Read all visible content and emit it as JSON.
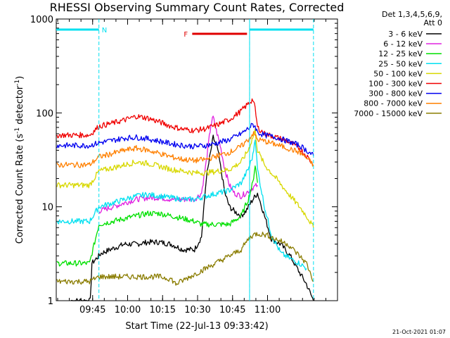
{
  "chart_data": {
    "type": "line",
    "title": "RHESSI Observing Summary Count Rates, Corrected",
    "xlabel": "Start Time (22-Jul-13 09:33:42)",
    "ylabel_main": "Corrected Count Rate (s",
    "ylabel_sup1": "-1",
    "ylabel_mid": " detector",
    "ylabel_sup2": "-1",
    "ylabel_end": ")",
    "y_scale": "log",
    "ylim": [
      1,
      1000
    ],
    "xlim_minutes": [
      -4.3,
      116.3
    ],
    "x_ticks": [
      "09:45",
      "10:00",
      "10:15",
      "10:30",
      "10:45",
      "11:00"
    ],
    "x_tick_minutes": [
      11.3,
      26.3,
      41.3,
      56.3,
      71.3,
      86.3
    ],
    "y_ticks": [
      "1",
      "10",
      "100",
      "1000"
    ],
    "y_tick_values": [
      1,
      10,
      100,
      1000
    ],
    "legend_header": [
      "Det 1,3,4,5,6,9,",
      "Att 0"
    ],
    "legend_placement": "right-outside",
    "series": [
      {
        "name": "3 - 6 keV",
        "color": "#000000",
        "points": [
          [
            2,
            1
          ],
          [
            10.3,
            1
          ],
          [
            11,
            2.5
          ],
          [
            15,
            3.2
          ],
          [
            20,
            3.6
          ],
          [
            25,
            4.0
          ],
          [
            30,
            4.0
          ],
          [
            35,
            4.2
          ],
          [
            40,
            4.2
          ],
          [
            45,
            4.0
          ],
          [
            50,
            3.5
          ],
          [
            55,
            3.5
          ],
          [
            58,
            4.8
          ],
          [
            60,
            20
          ],
          [
            63,
            55
          ],
          [
            65,
            40
          ],
          [
            68,
            14
          ],
          [
            70,
            10
          ],
          [
            72,
            9
          ],
          [
            75,
            8
          ],
          [
            77,
            9
          ],
          [
            80,
            12
          ],
          [
            82,
            14
          ],
          [
            85,
            8
          ],
          [
            88,
            4.5
          ],
          [
            92,
            4
          ],
          [
            96,
            3
          ],
          [
            100,
            2
          ],
          [
            103,
            1.5
          ],
          [
            106,
            1
          ]
        ]
      },
      {
        "name": "6 - 12 keV",
        "color": "#e020e0",
        "points": [
          [
            14,
            9
          ],
          [
            20,
            10
          ],
          [
            25,
            11
          ],
          [
            30,
            12
          ],
          [
            35,
            12.5
          ],
          [
            40,
            12.5
          ],
          [
            45,
            12
          ],
          [
            50,
            12
          ],
          [
            55,
            12
          ],
          [
            58,
            14
          ],
          [
            60,
            30
          ],
          [
            62,
            75
          ],
          [
            63,
            90
          ],
          [
            64,
            70
          ],
          [
            66,
            45
          ],
          [
            68,
            25
          ],
          [
            70,
            17
          ],
          [
            72,
            14
          ],
          [
            75,
            13
          ],
          [
            77,
            14
          ],
          [
            80,
            16
          ],
          [
            82,
            17
          ]
        ]
      },
      {
        "name": "12 - 25 keV",
        "color": "#00e000",
        "points": [
          [
            -4,
            2.5
          ],
          [
            10,
            2.5
          ],
          [
            14,
            6.5
          ],
          [
            20,
            7
          ],
          [
            25,
            7.5
          ],
          [
            30,
            8
          ],
          [
            35,
            8.5
          ],
          [
            40,
            8.5
          ],
          [
            45,
            8
          ],
          [
            50,
            7.5
          ],
          [
            55,
            7
          ],
          [
            58,
            6.5
          ],
          [
            60,
            6.5
          ],
          [
            65,
            6.5
          ],
          [
            70,
            6.5
          ],
          [
            75,
            8
          ],
          [
            78,
            12
          ],
          [
            80,
            18
          ],
          [
            81,
            28
          ],
          [
            82,
            18
          ]
        ]
      },
      {
        "name": "25 - 50 keV",
        "color": "#00e0f0",
        "points": [
          [
            -4,
            7
          ],
          [
            10,
            7
          ],
          [
            14,
            10
          ],
          [
            20,
            11
          ],
          [
            25,
            12
          ],
          [
            30,
            13
          ],
          [
            35,
            13.5
          ],
          [
            40,
            13
          ],
          [
            45,
            12.5
          ],
          [
            50,
            12
          ],
          [
            55,
            12
          ],
          [
            60,
            13
          ],
          [
            65,
            14
          ],
          [
            70,
            15
          ],
          [
            75,
            18
          ],
          [
            78,
            25
          ],
          [
            80,
            35
          ],
          [
            81,
            55
          ],
          [
            82,
            25
          ],
          [
            85,
            10
          ],
          [
            88,
            5
          ],
          [
            92,
            3.2
          ],
          [
            96,
            2.8
          ],
          [
            100,
            2.5
          ],
          [
            103,
            2.2
          ]
        ]
      },
      {
        "name": "50 - 100 keV",
        "color": "#d8d800",
        "points": [
          [
            -4,
            17
          ],
          [
            10,
            17
          ],
          [
            14,
            24
          ],
          [
            20,
            26
          ],
          [
            25,
            28
          ],
          [
            30,
            30
          ],
          [
            35,
            29
          ],
          [
            40,
            27
          ],
          [
            45,
            25
          ],
          [
            50,
            24
          ],
          [
            55,
            23
          ],
          [
            60,
            23
          ],
          [
            65,
            24
          ],
          [
            70,
            25
          ],
          [
            75,
            30
          ],
          [
            78,
            40
          ],
          [
            80,
            55
          ],
          [
            81,
            65
          ],
          [
            82,
            40
          ],
          [
            85,
            28
          ],
          [
            90,
            20
          ],
          [
            95,
            14
          ],
          [
            100,
            10
          ],
          [
            103,
            8
          ],
          [
            106,
            6
          ]
        ]
      },
      {
        "name": "100 - 300 keV",
        "color": "#f00000",
        "points": [
          [
            -4,
            58
          ],
          [
            10,
            58
          ],
          [
            14,
            72
          ],
          [
            20,
            78
          ],
          [
            25,
            84
          ],
          [
            30,
            92
          ],
          [
            35,
            88
          ],
          [
            40,
            80
          ],
          [
            45,
            72
          ],
          [
            50,
            67
          ],
          [
            55,
            65
          ],
          [
            60,
            68
          ],
          [
            65,
            75
          ],
          [
            70,
            85
          ],
          [
            75,
            105
          ],
          [
            78,
            125
          ],
          [
            80,
            140
          ],
          [
            81,
            110
          ],
          [
            82,
            70
          ],
          [
            85,
            60
          ],
          [
            90,
            55
          ],
          [
            95,
            50
          ],
          [
            100,
            42
          ],
          [
            103,
            35
          ],
          [
            106,
            28
          ]
        ]
      },
      {
        "name": "300 - 800 keV",
        "color": "#0000f0",
        "points": [
          [
            -4,
            45
          ],
          [
            10,
            45
          ],
          [
            14,
            48
          ],
          [
            20,
            51
          ],
          [
            25,
            54
          ],
          [
            30,
            55
          ],
          [
            35,
            53
          ],
          [
            40,
            50
          ],
          [
            45,
            47
          ],
          [
            50,
            45
          ],
          [
            55,
            44
          ],
          [
            60,
            45
          ],
          [
            65,
            48
          ],
          [
            70,
            52
          ],
          [
            75,
            60
          ],
          [
            78,
            68
          ],
          [
            80,
            75
          ],
          [
            81,
            72
          ],
          [
            82,
            62
          ],
          [
            85,
            58
          ],
          [
            90,
            55
          ],
          [
            95,
            50
          ],
          [
            100,
            45
          ],
          [
            103,
            40
          ],
          [
            106,
            35
          ]
        ]
      },
      {
        "name": "800 - 7000 keV",
        "color": "#ff8000",
        "points": [
          [
            -4,
            28
          ],
          [
            10,
            28
          ],
          [
            14,
            34
          ],
          [
            20,
            37
          ],
          [
            25,
            40
          ],
          [
            30,
            42
          ],
          [
            35,
            40
          ],
          [
            40,
            37
          ],
          [
            45,
            34
          ],
          [
            50,
            32
          ],
          [
            55,
            31
          ],
          [
            60,
            32
          ],
          [
            65,
            35
          ],
          [
            70,
            38
          ],
          [
            75,
            44
          ],
          [
            78,
            52
          ],
          [
            80,
            60
          ],
          [
            81,
            58
          ],
          [
            82,
            52
          ],
          [
            85,
            50
          ],
          [
            90,
            46
          ],
          [
            95,
            42
          ],
          [
            100,
            38
          ],
          [
            103,
            33
          ],
          [
            106,
            28
          ]
        ]
      },
      {
        "name": "7000 - 15000 keV",
        "color": "#8a7c00",
        "points": [
          [
            -4,
            1.6
          ],
          [
            10,
            1.6
          ],
          [
            14,
            1.8
          ],
          [
            20,
            1.8
          ],
          [
            25,
            1.8
          ],
          [
            30,
            1.8
          ],
          [
            35,
            1.8
          ],
          [
            40,
            1.8
          ],
          [
            45,
            1.7
          ],
          [
            47,
            1.5
          ],
          [
            70,
            3
          ],
          [
            75,
            3.5
          ],
          [
            78,
            4.5
          ],
          [
            80,
            5
          ],
          [
            82,
            5.2
          ],
          [
            86,
            5
          ],
          [
            90,
            4.5
          ],
          [
            95,
            4
          ],
          [
            100,
            3
          ],
          [
            103,
            2.5
          ],
          [
            106,
            1.6
          ]
        ]
      }
    ],
    "annotations": {
      "flag_labels": [
        "N",
        "F"
      ],
      "flag_colors": [
        "#00e0f0",
        "#e00000"
      ],
      "night_intervals_minutes": [
        [
          -4.3,
          14
        ],
        [
          78.6,
          106
        ]
      ],
      "flare_interval_minutes": [
        54,
        77.5
      ],
      "night_color": "#00e0f0",
      "flare_color": "#e00000"
    },
    "timestamp": "21-Oct-2021 01:07"
  }
}
